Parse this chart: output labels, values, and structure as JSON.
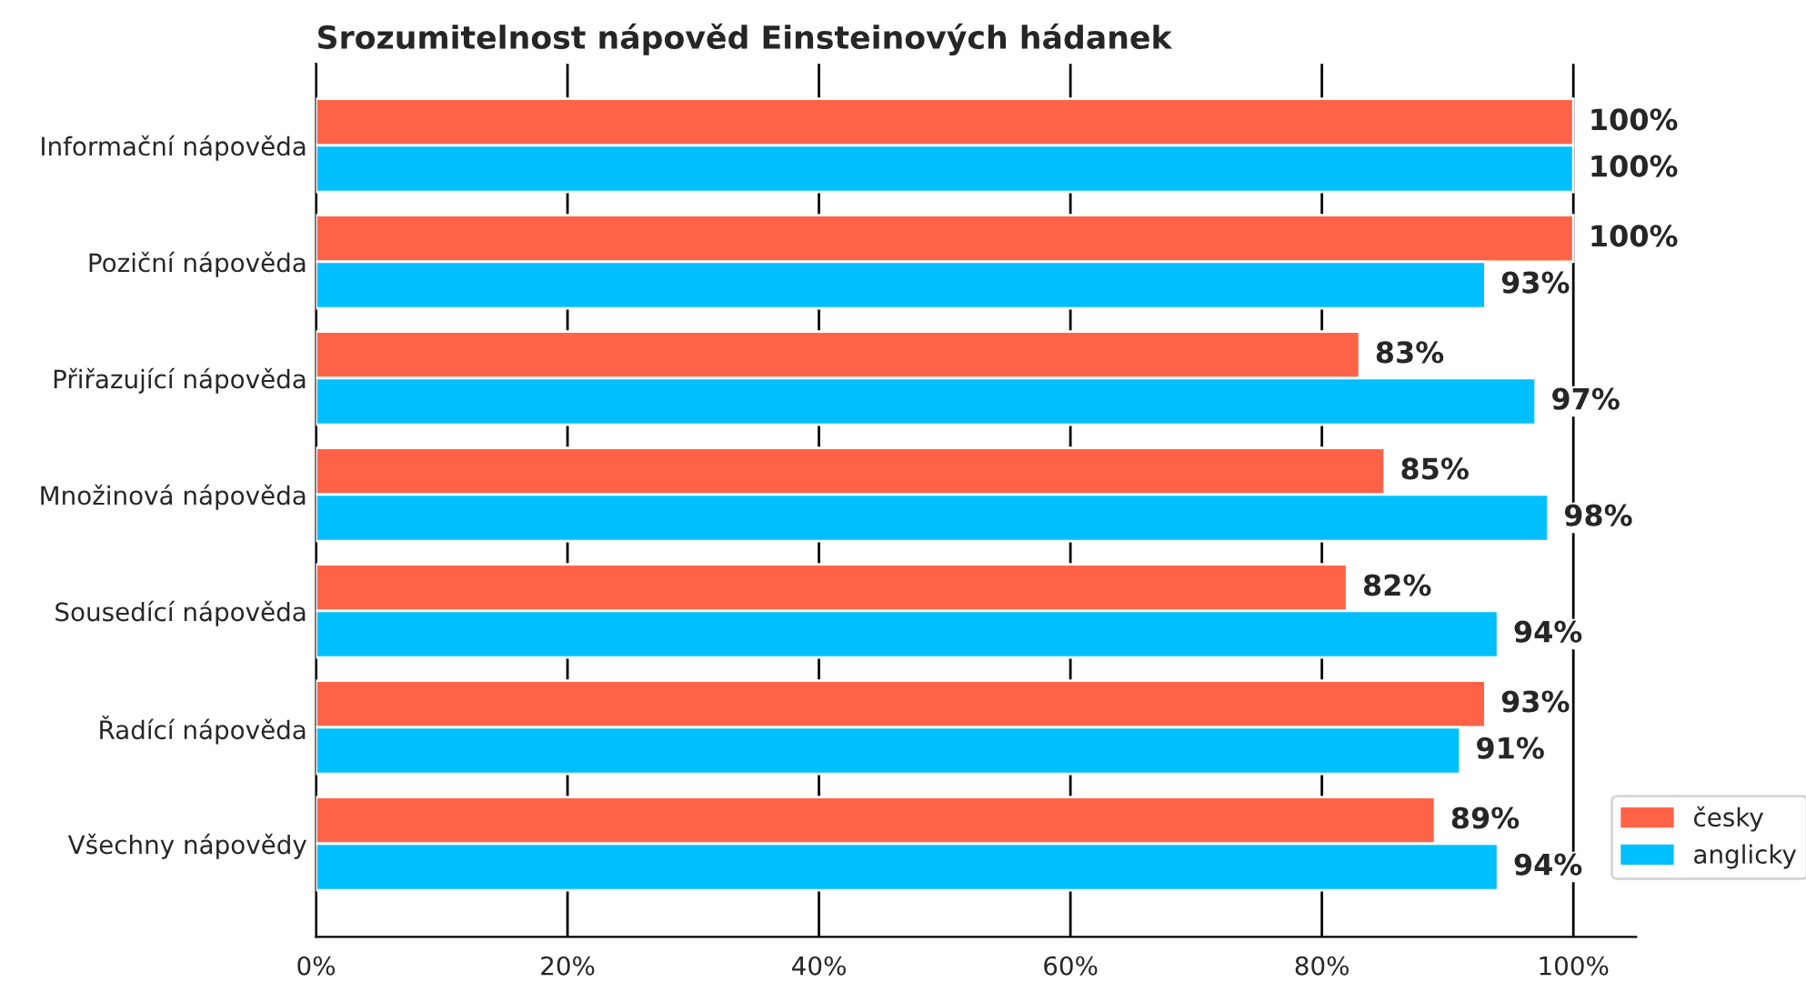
{
  "chart_data": {
    "type": "bar",
    "orientation": "horizontal",
    "title": "Srozumitelnost nápověd Einsteinových hádanek",
    "categories": [
      "Informační nápověda",
      "Poziční nápověda",
      "Přiřazující nápověda",
      "Množinová nápověda",
      "Sousedící nápověda",
      "Řadící nápověda",
      "Všechny nápovědy"
    ],
    "series": [
      {
        "name": "česky",
        "color": "#ff6347",
        "values": [
          100,
          100,
          83,
          85,
          82,
          93,
          89
        ],
        "value_labels": [
          "100%",
          "100%",
          "83%",
          "85%",
          "82%",
          "93%",
          "89%"
        ]
      },
      {
        "name": "anglicky",
        "color": "#00bfff",
        "values": [
          100,
          93,
          97,
          98,
          94,
          91,
          94
        ],
        "value_labels": [
          "100%",
          "93%",
          "97%",
          "98%",
          "94%",
          "91%",
          "94%"
        ]
      }
    ],
    "xlim": [
      0,
      105
    ],
    "xticks": [
      {
        "value": 0,
        "label": "0%"
      },
      {
        "value": 20,
        "label": "20%"
      },
      {
        "value": 40,
        "label": "40%"
      },
      {
        "value": 60,
        "label": "60%"
      },
      {
        "value": 80,
        "label": "80%"
      },
      {
        "value": 100,
        "label": "100%"
      }
    ],
    "grid": "x",
    "legend": "bottom right"
  }
}
